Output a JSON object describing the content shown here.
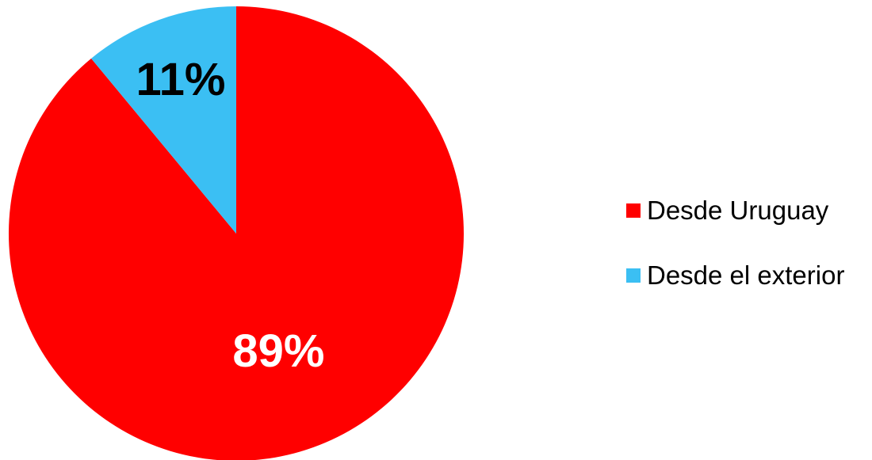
{
  "chart_data": {
    "type": "pie",
    "categories": [
      "Desde Uruguay",
      "Desde el exterior"
    ],
    "values": [
      89,
      11
    ],
    "data_labels": [
      "89%",
      "11%"
    ],
    "colors": [
      "#ff0000",
      "#3bbff3"
    ],
    "label_colors": [
      "#ffffff",
      "#000000"
    ],
    "start_angle_deg": 0,
    "direction": "clockwise_from_12_oclock_exterior_first",
    "legend_position": "right"
  }
}
